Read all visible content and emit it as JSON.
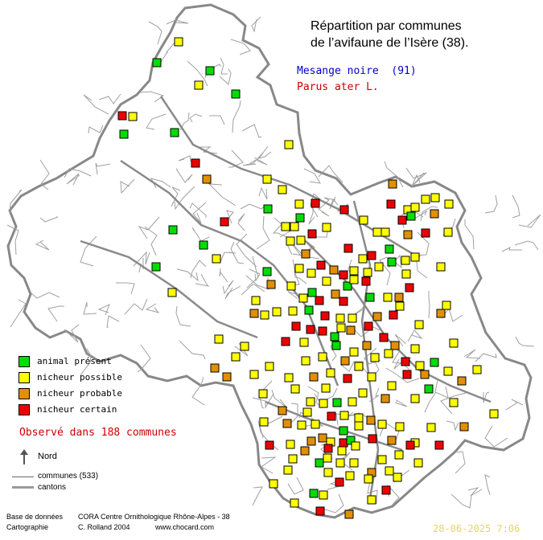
{
  "title": {
    "line1": "Répartition par communes",
    "line2": "de l’avifaune de l’Isère (38)."
  },
  "species": {
    "common_name": "Mesange noire",
    "count": "(91)",
    "latin_name": "Parus ater L."
  },
  "legend": {
    "items": [
      {
        "label": "animal présent",
        "color": "#00dd00"
      },
      {
        "label": "nicheur possible",
        "color": "#ffff00"
      },
      {
        "label": "nicheur probable",
        "color": "#e09000"
      },
      {
        "label": "nicheur certain",
        "color": "#ee0000"
      }
    ],
    "observed": "Observé dans 188 communes",
    "north": "Nord",
    "communes": "communes (533)",
    "cantons": "cantons"
  },
  "footer": {
    "db_label": "Base de données",
    "db_value": "CORA Centre Ornithologique Rhône-Alpes - 38",
    "carto_label": "Cartographie",
    "carto_value": "C. Rolland 2004",
    "url": "www.chocard.com",
    "date": "28-06-2025 7:06"
  },
  "colors": {
    "title_blue": "#0000cc",
    "latin_red": "#cc0000",
    "observed_red": "#cc0000",
    "date_yellow": "#e6d46a",
    "commune_line": "#a0a0a0",
    "canton_line": "#8a8a8a"
  }
}
